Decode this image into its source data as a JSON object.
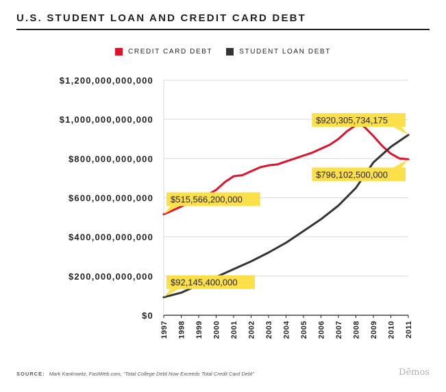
{
  "chart_data": {
    "type": "line",
    "title": "U.S. STUDENT LOAN AND CREDIT CARD DEBT",
    "xlabel": "",
    "ylabel": "",
    "x_ticks": [
      "1997",
      "1998",
      "1999",
      "2000",
      "2001",
      "2002",
      "2003",
      "2004",
      "2005",
      "2006",
      "2007",
      "2008",
      "2009",
      "2010",
      "2011"
    ],
    "y_ticks": [
      "$0",
      "$200,000,000,000",
      "$400,000,000,000",
      "$600,000,000,000",
      "$800,000,000,000",
      "$1,000,000,000,000",
      "$1,200,000,000,000"
    ],
    "xlim": [
      1997,
      2011
    ],
    "ylim": [
      0,
      1200000000000
    ],
    "legend_position": "top-center",
    "series": [
      {
        "name": "CREDIT CARD DEBT",
        "color": "#e0112b",
        "x": [
          1997,
          1997.5,
          1998,
          1998.5,
          1999,
          1999.5,
          2000,
          2000.5,
          2001,
          2001.5,
          2002,
          2002.5,
          2003,
          2003.5,
          2004,
          2004.5,
          2005,
          2005.5,
          2006,
          2006.5,
          2007,
          2007.5,
          2008,
          2008.25,
          2008.5,
          2009,
          2009.5,
          2010,
          2010.5,
          2011
        ],
        "values": [
          515566200000,
          535000000000,
          555000000000,
          575000000000,
          595000000000,
          615000000000,
          640000000000,
          680000000000,
          710000000000,
          715000000000,
          735000000000,
          755000000000,
          765000000000,
          770000000000,
          785000000000,
          800000000000,
          815000000000,
          830000000000,
          850000000000,
          870000000000,
          900000000000,
          940000000000,
          970000000000,
          975000000000,
          960000000000,
          915000000000,
          865000000000,
          825000000000,
          800000000000,
          796102500000
        ]
      },
      {
        "name": "STUDENT LOAN DEBT",
        "color": "#333333",
        "x": [
          1997,
          1998,
          1999,
          2000,
          2001,
          2002,
          2003,
          2004,
          2005,
          2006,
          2007,
          2008,
          2009,
          2010,
          2011
        ],
        "values": [
          92145400000,
          115000000000,
          155000000000,
          195000000000,
          235000000000,
          275000000000,
          320000000000,
          370000000000,
          430000000000,
          490000000000,
          560000000000,
          650000000000,
          780000000000,
          860000000000,
          920305734175
        ]
      }
    ],
    "annotations": [
      {
        "text": "$515,566,200,000",
        "x": 1997,
        "y": 515566200000,
        "side": "right-up"
      },
      {
        "text": "$92,145,400,000",
        "x": 1997,
        "y": 92145400000,
        "side": "right-up"
      },
      {
        "text": "$920,305,734,175",
        "x": 2011,
        "y": 920305734175,
        "side": "left-up"
      },
      {
        "text": "$796,102,500,000",
        "x": 2011,
        "y": 796102500000,
        "side": "left-down"
      }
    ]
  },
  "colors": {
    "callout": "#fce04a",
    "grid": "#d9d9d9",
    "axis": "#231f20"
  },
  "footer": {
    "source_label": "SOURCE:",
    "citation": "Mark Kantrowitz, FastWeb.com, “Total College Debt Now Exceeds Total Credit Card Debt”"
  },
  "brand": "Dēmos"
}
